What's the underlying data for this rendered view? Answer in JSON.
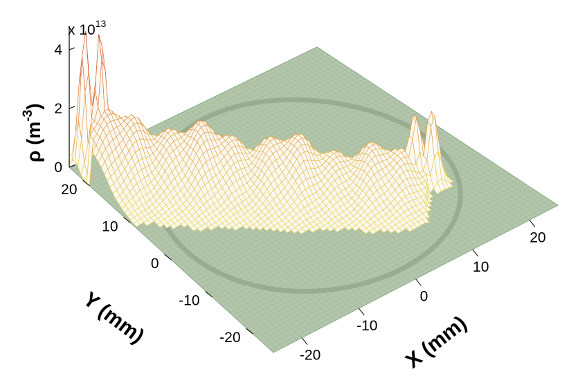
{
  "chart_data": {
    "type": "surface",
    "title": "",
    "multiplier_base": "x 10",
    "multiplier_exp": "13",
    "x_axis": {
      "label": "X (mm)",
      "range": [
        -25,
        25
      ],
      "ticks": [
        -20,
        -10,
        0,
        10,
        20
      ],
      "tick_labels": [
        "-20",
        "-10",
        "0",
        "10",
        "20"
      ]
    },
    "y_axis": {
      "label": "Y (mm)",
      "range": [
        -25,
        25
      ],
      "ticks": [
        -20,
        -10,
        0,
        10,
        20
      ],
      "tick_labels": [
        "-20",
        "-10",
        "0",
        "10",
        "20"
      ]
    },
    "z_axis": {
      "label_base": "ρ (m",
      "label_exp": "-3",
      "label_close": ")",
      "range": [
        0,
        4.8
      ],
      "ticks": [
        0,
        2,
        4
      ],
      "tick_labels": [
        "0",
        "2",
        "4"
      ]
    },
    "surface": {
      "ridge_from": [
        -22,
        22
      ],
      "ridge_to": [
        14,
        -9
      ],
      "ridge_base_level": 1.9,
      "ridge_end_level": 1.0,
      "peaks": [
        {
          "x": -23.0,
          "y": 23.6,
          "height": 4.7
        },
        {
          "x": -21.2,
          "y": 22.0,
          "height": 4.8
        },
        {
          "x": 13.6,
          "y": -8.2,
          "height": 2.5
        },
        {
          "x": 15.5,
          "y": -9.6,
          "height": 2.6
        }
      ],
      "ring_radius_mm": 22
    },
    "colors": {
      "floor": "#b5c4ac",
      "grid": "#6fba6f",
      "mesh_low": "#e8d84a",
      "mesh_high": "#d22a20"
    }
  }
}
